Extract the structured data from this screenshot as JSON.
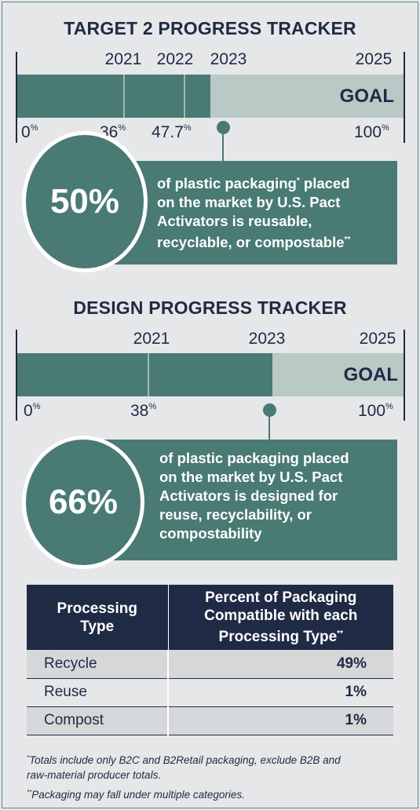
{
  "target2": {
    "title": "TARGET 2 PROGRESS TRACKER",
    "years": [
      "2021",
      "2022",
      "2023",
      "2025"
    ],
    "goal_label": "GOAL",
    "progress_fraction": 0.5,
    "markers": [
      {
        "value": "0",
        "pct": "%"
      },
      {
        "value": "36",
        "pct": "%"
      },
      {
        "value": "47.7",
        "pct": "%"
      },
      {
        "value": "100",
        "pct": "%"
      }
    ],
    "stat_value": "50%",
    "stat_text_1": "of plastic packaging",
    "stat_text_1_sup": "*",
    "stat_text_1b": " placed",
    "stat_text_2": "on the market by U.S. Pact",
    "stat_text_3": "Activators is reusable,",
    "stat_text_4": "recyclable, or compostable",
    "stat_text_4_sup": "**"
  },
  "design": {
    "title": "DESIGN PROGRESS TRACKER",
    "years": [
      "2021",
      "2023",
      "2025"
    ],
    "goal_label": "GOAL",
    "progress_fraction": 0.66,
    "markers": [
      {
        "value": "0",
        "pct": "%"
      },
      {
        "value": "38",
        "pct": "%"
      },
      {
        "value": "100",
        "pct": "%"
      }
    ],
    "stat_value": "66%",
    "stat_text_1": "of plastic packaging placed",
    "stat_text_2": "on the market by U.S. Pact",
    "stat_text_3": "Activators is designed for",
    "stat_text_4": "reuse, recyclability, or",
    "stat_text_5": "compostability"
  },
  "table": {
    "header_col1_line1": "Processing",
    "header_col1_line2": "Type",
    "header_col2_line1": "Percent of Packaging",
    "header_col2_line2": "Compatible with each",
    "header_col2_line3": "Processing Type",
    "header_col2_sup": "**",
    "rows": [
      {
        "type": "Recycle",
        "percent": "49%"
      },
      {
        "type": "Reuse",
        "percent": "1%"
      },
      {
        "type": "Compost",
        "percent": "1%"
      }
    ]
  },
  "footnotes": {
    "note1_sup": "*",
    "note1_line1": "Totals include only B2C and B2Retail packaging, exclude B2B and",
    "note1_line2": "raw-material producer totals.",
    "note2_sup": "**",
    "note2_text": "Packaging may fall under multiple categories."
  },
  "colors": {
    "teal": "#497a73",
    "light_teal": "#b8c9c6",
    "navy": "#1f2a44",
    "background": "#e6e7e8"
  }
}
